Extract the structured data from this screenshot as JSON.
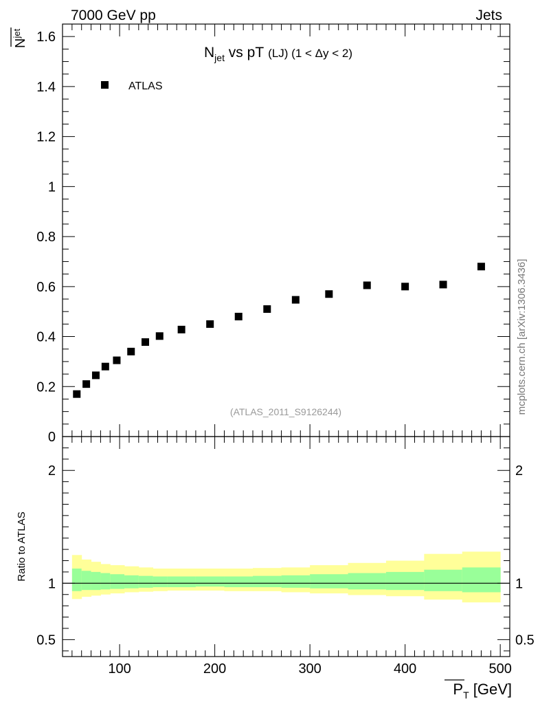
{
  "header": {
    "left": "7000 GeV pp",
    "right": "Jets"
  },
  "side_note": "mcplots.cern.ch [arXiv:1306.3436]",
  "chart_data": [
    {
      "type": "scatter",
      "panel": "main",
      "title": "N",
      "title_sub": "jet",
      "title_rest": " vs pT",
      "title_suffix": "(LJ) (1 < Δy < 2)",
      "ylabel": "N",
      "ylabel_sub": "jet",
      "legend_position": "top-left",
      "analysis_tag": "(ATLAS_2011_S9126244)",
      "xlim": [
        40,
        510
      ],
      "ylim": [
        0,
        1.65
      ],
      "yticks": [
        0,
        0.2,
        0.4,
        0.6,
        0.8,
        1,
        1.2,
        1.4,
        1.6
      ],
      "ytick_labels": [
        "0",
        "0.2",
        "0.4",
        "0.6",
        "0.8",
        "1",
        "1.2",
        "1.4",
        "1.6"
      ],
      "series": [
        {
          "name": "ATLAS",
          "x": [
            55,
            65,
            75,
            85,
            97,
            112,
            127,
            142,
            165,
            195,
            225,
            255,
            285,
            320,
            360,
            400,
            440,
            480
          ],
          "y": [
            0.17,
            0.21,
            0.245,
            0.28,
            0.305,
            0.34,
            0.378,
            0.402,
            0.428,
            0.45,
            0.48,
            0.51,
            0.547,
            0.57,
            0.605,
            0.6,
            0.608,
            0.68
          ]
        }
      ]
    },
    {
      "type": "area",
      "panel": "ratio",
      "ylabel": "Ratio to ATLAS",
      "xlabel": "P",
      "xlabel_sub": "T",
      "xlabel_unit": " [GeV]",
      "xlim": [
        40,
        510
      ],
      "ylim": [
        0.35,
        2.3
      ],
      "xticks": [
        100,
        200,
        300,
        400,
        500
      ],
      "xtick_labels": [
        "100",
        "200",
        "300",
        "400",
        "500"
      ],
      "yticks": [
        0.5,
        1,
        2
      ],
      "ytick_labels": [
        "0.5",
        "1",
        "2"
      ],
      "bin_edges": [
        50,
        60,
        70,
        80,
        90,
        105,
        120,
        135,
        150,
        180,
        210,
        240,
        270,
        300,
        340,
        380,
        420,
        460,
        500
      ],
      "inner_band": [
        [
          0.93,
          1.13
        ],
        [
          0.94,
          1.11
        ],
        [
          0.94,
          1.1
        ],
        [
          0.945,
          1.09
        ],
        [
          0.95,
          1.08
        ],
        [
          0.955,
          1.07
        ],
        [
          0.96,
          1.065
        ],
        [
          0.965,
          1.06
        ],
        [
          0.965,
          1.06
        ],
        [
          0.97,
          1.06
        ],
        [
          0.965,
          1.06
        ],
        [
          0.965,
          1.065
        ],
        [
          0.96,
          1.07
        ],
        [
          0.955,
          1.08
        ],
        [
          0.945,
          1.09
        ],
        [
          0.94,
          1.1
        ],
        [
          0.93,
          1.12
        ],
        [
          0.92,
          1.14
        ]
      ],
      "outer_band": [
        [
          0.86,
          1.25
        ],
        [
          0.88,
          1.21
        ],
        [
          0.89,
          1.19
        ],
        [
          0.9,
          1.17
        ],
        [
          0.91,
          1.16
        ],
        [
          0.92,
          1.15
        ],
        [
          0.925,
          1.14
        ],
        [
          0.93,
          1.13
        ],
        [
          0.935,
          1.13
        ],
        [
          0.935,
          1.13
        ],
        [
          0.93,
          1.13
        ],
        [
          0.93,
          1.135
        ],
        [
          0.92,
          1.14
        ],
        [
          0.91,
          1.16
        ],
        [
          0.895,
          1.18
        ],
        [
          0.885,
          1.2
        ],
        [
          0.855,
          1.26
        ],
        [
          0.83,
          1.28
        ]
      ],
      "colors": {
        "inner": "#99ff99",
        "outer": "#ffff99",
        "line": "#000000"
      }
    }
  ]
}
